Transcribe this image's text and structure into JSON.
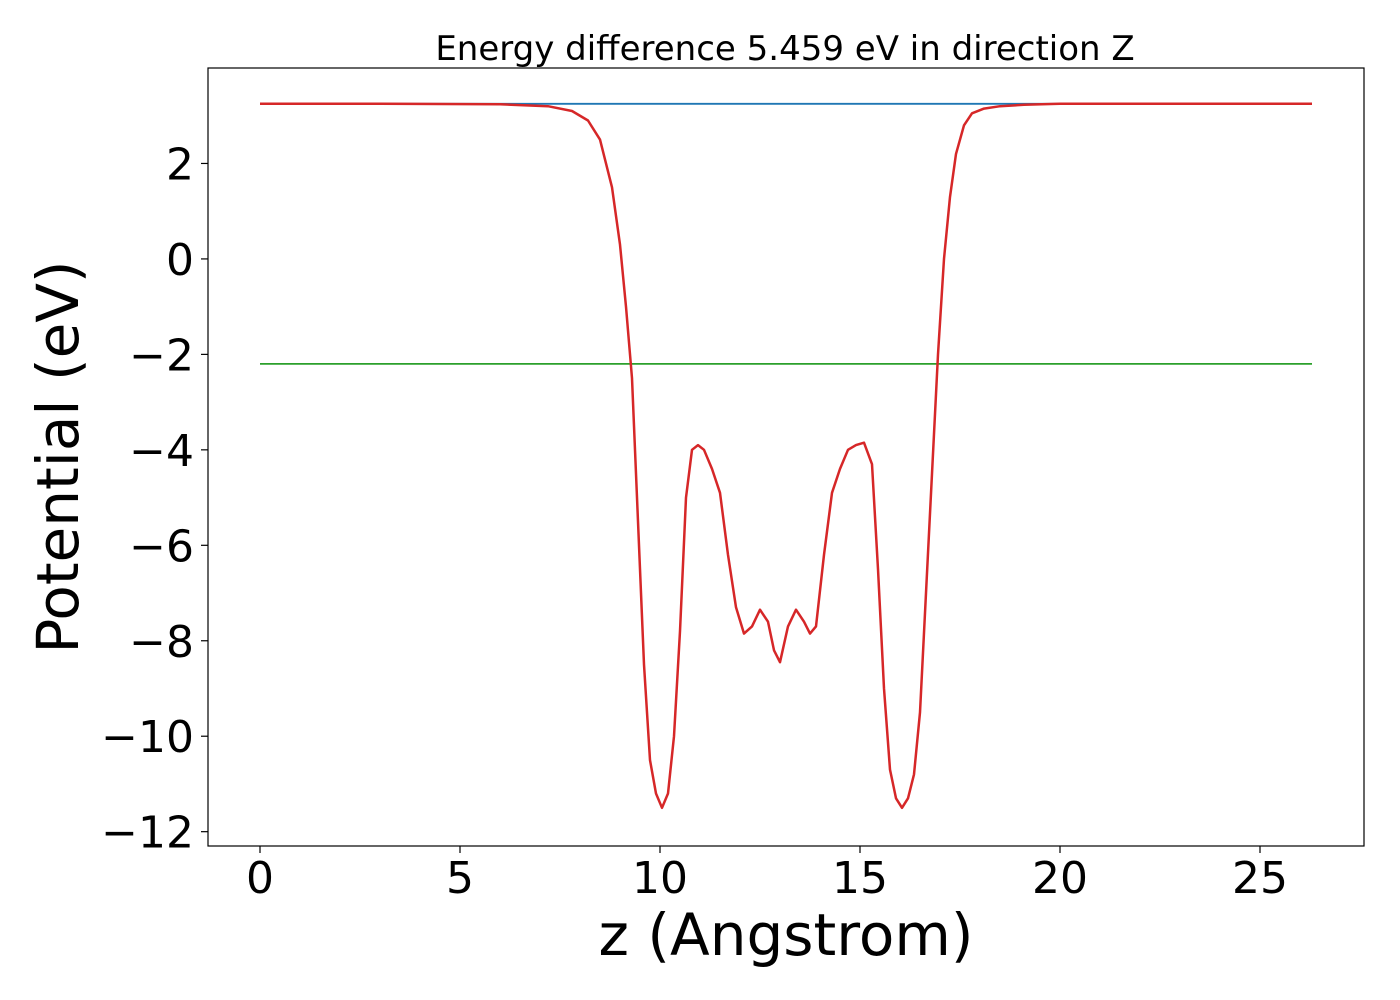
{
  "chart_data": {
    "type": "line",
    "title": "Energy difference 5.459 eV in direction Z",
    "xlabel": "z (Angstrom)",
    "ylabel": "Potential (eV)",
    "xlim": [
      -1.3,
      27.6
    ],
    "ylim": [
      -12.3,
      4.0
    ],
    "x_ticks": [
      0,
      5,
      10,
      15,
      20,
      25
    ],
    "x_tick_labels": [
      "0",
      "5",
      "10",
      "15",
      "20",
      "25"
    ],
    "y_ticks": [
      2,
      0,
      -2,
      -4,
      -6,
      -8,
      -10,
      -12
    ],
    "y_tick_labels": [
      "2",
      "0",
      "−2",
      "−4",
      "−6",
      "−8",
      "−10",
      "−12"
    ],
    "grid": false,
    "legend": "none",
    "series": [
      {
        "color": "#d62728",
        "x": [
          0,
          3,
          6,
          7.2,
          7.8,
          8.2,
          8.5,
          8.8,
          9.0,
          9.15,
          9.3,
          9.45,
          9.6,
          9.75,
          9.9,
          10.05,
          10.2,
          10.35,
          10.5,
          10.65,
          10.8,
          10.95,
          11.1,
          11.3,
          11.5,
          11.7,
          11.9,
          12.1,
          12.3,
          12.5,
          12.7,
          12.85,
          13.0,
          13.2,
          13.4,
          13.6,
          13.75,
          13.9,
          14.1,
          14.3,
          14.5,
          14.7,
          14.9,
          15.1,
          15.3,
          15.45,
          15.6,
          15.75,
          15.9,
          16.05,
          16.2,
          16.35,
          16.5,
          16.65,
          16.8,
          16.95,
          17.1,
          17.25,
          17.4,
          17.6,
          17.8,
          18.1,
          18.5,
          19.1,
          20,
          23,
          26.3
        ],
        "y": [
          3.25,
          3.25,
          3.24,
          3.2,
          3.1,
          2.9,
          2.5,
          1.5,
          0.3,
          -1.0,
          -2.5,
          -5.5,
          -8.5,
          -10.5,
          -11.2,
          -11.5,
          -11.2,
          -10.0,
          -7.8,
          -5.0,
          -4.0,
          -3.9,
          -4.0,
          -4.4,
          -4.9,
          -6.2,
          -7.3,
          -7.85,
          -7.7,
          -7.35,
          -7.6,
          -8.2,
          -8.45,
          -7.7,
          -7.35,
          -7.6,
          -7.85,
          -7.7,
          -6.2,
          -4.9,
          -4.4,
          -4.0,
          -3.9,
          -3.85,
          -4.3,
          -6.5,
          -9.0,
          -10.7,
          -11.3,
          -11.5,
          -11.3,
          -10.8,
          -9.5,
          -7.0,
          -4.5,
          -2.0,
          0.0,
          1.3,
          2.2,
          2.8,
          3.05,
          3.15,
          3.2,
          3.23,
          3.25,
          3.25,
          3.25
        ]
      },
      {
        "color": "#1f77b4",
        "x": [
          0,
          26.3
        ],
        "y": [
          3.25,
          3.25
        ]
      },
      {
        "color": "#2ca02c",
        "x": [
          0,
          26.3
        ],
        "y": [
          -2.2,
          -2.2
        ]
      }
    ]
  }
}
